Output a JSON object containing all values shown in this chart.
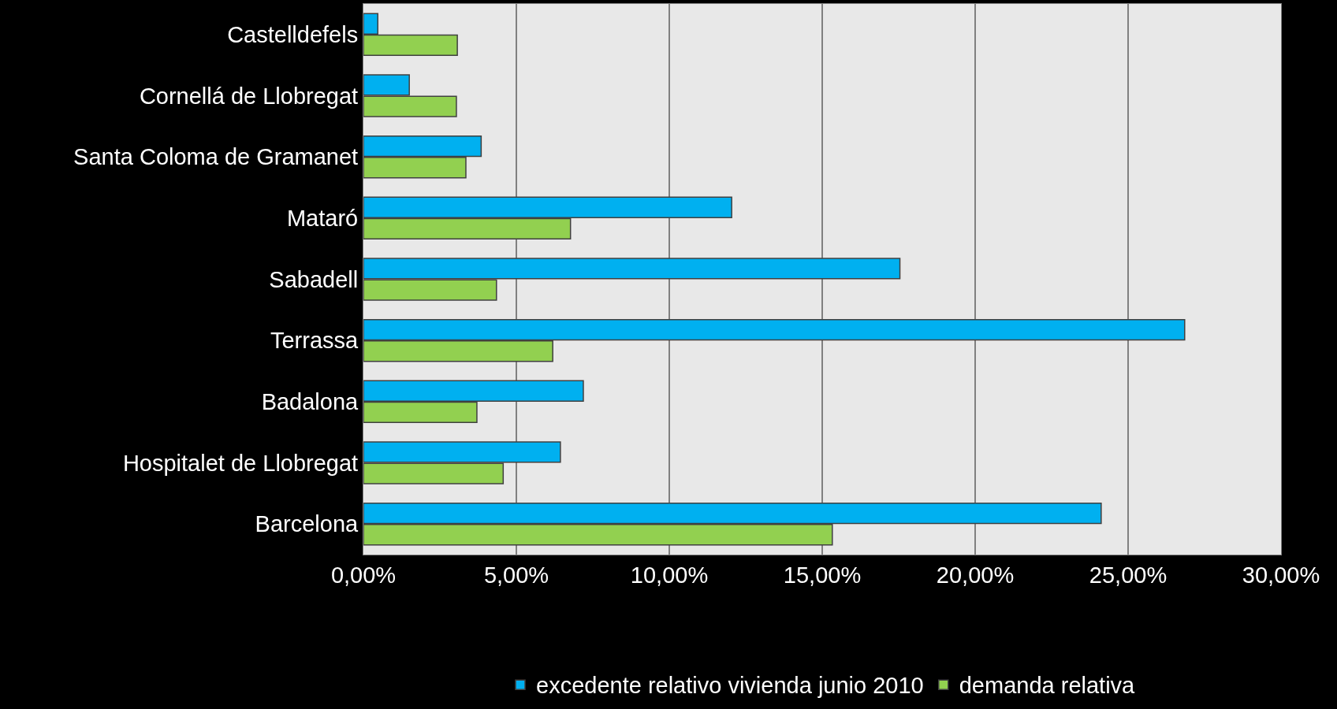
{
  "chart_data": {
    "type": "bar",
    "orientation": "horizontal",
    "categories": [
      "Castelldefels",
      "Cornellá de Llobregat",
      "Santa Coloma de Gramanet",
      "Mataró",
      "Sabadell",
      "Terrassa",
      "Badalona",
      "Hospitalet de Llobregat",
      "Barcelona"
    ],
    "series": [
      {
        "name": "excedente relativo vivienda junio 2010",
        "color": "#00b0f0",
        "values": [
          0.47,
          1.5,
          3.85,
          12.04,
          17.54,
          26.85,
          7.19,
          6.44,
          24.12
        ]
      },
      {
        "name": "demanda relativa",
        "color": "#92d050",
        "values": [
          3.07,
          3.04,
          3.35,
          6.77,
          4.35,
          6.19,
          3.71,
          4.57,
          15.33
        ]
      }
    ],
    "xlim": [
      0,
      30
    ],
    "xticks": [
      {
        "value": 0,
        "label": "0,00%"
      },
      {
        "value": 5,
        "label": "5,00%"
      },
      {
        "value": 10,
        "label": "10,00%"
      },
      {
        "value": 15,
        "label": "15,00%"
      },
      {
        "value": 20,
        "label": "20,00%"
      },
      {
        "value": 25,
        "label": "25,00%"
      },
      {
        "value": 30,
        "label": "30,00%"
      }
    ],
    "grid": "x",
    "legend": "bottom"
  }
}
